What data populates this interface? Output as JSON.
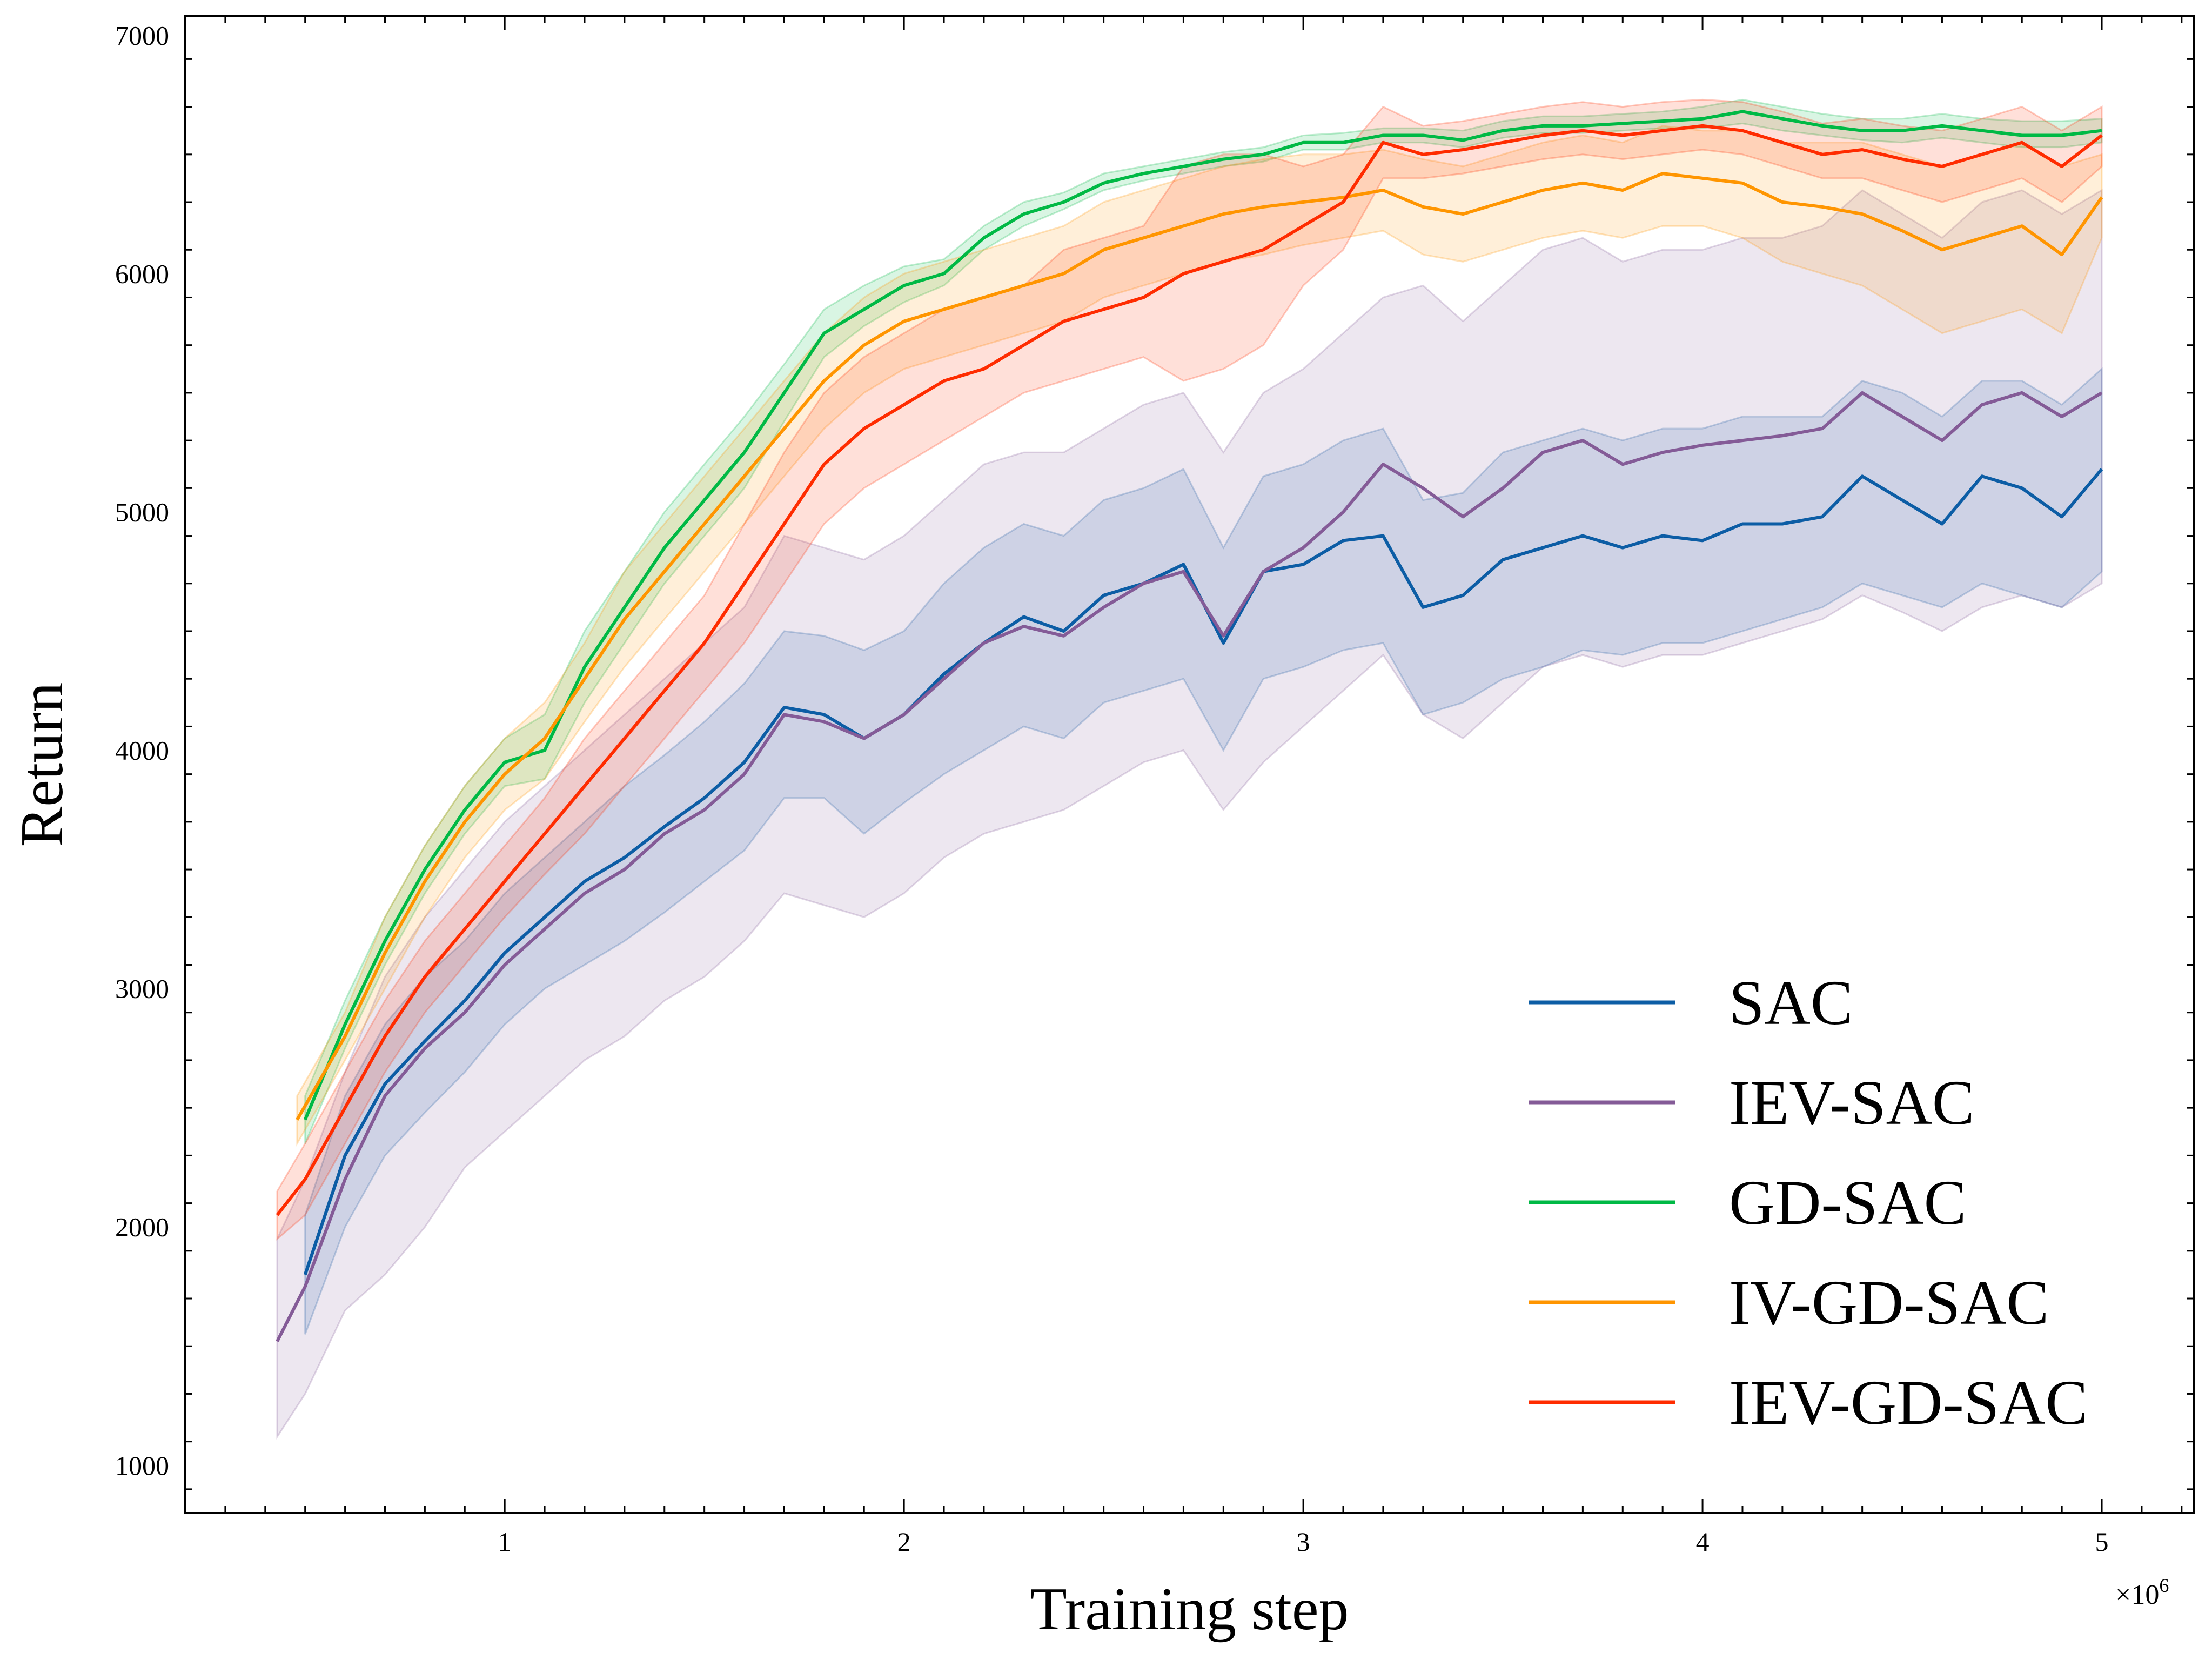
{
  "chart_data": {
    "type": "line",
    "title": "",
    "xlabel": "Training step",
    "ylabel": "Return",
    "x_scale_label": "×10",
    "x_scale_exponent": "6",
    "xlim": [
      0.2,
      5.23
    ],
    "ylim": [
      800,
      7080
    ],
    "xticks": [
      1,
      2,
      3,
      4,
      5
    ],
    "xtick_labels": [
      "1",
      "2",
      "3",
      "4",
      "5"
    ],
    "yticks": [
      1000,
      2000,
      3000,
      4000,
      5000,
      6000,
      7000
    ],
    "ytick_labels": [
      "1000",
      "2000",
      "3000",
      "4000",
      "5000",
      "6000",
      "7000"
    ],
    "legend_position": "lower-right",
    "series": [
      {
        "name": "SAC",
        "color": "#0C5DA5",
        "x": [
          0.5,
          0.6,
          0.7,
          0.8,
          0.9,
          1.0,
          1.1,
          1.2,
          1.3,
          1.4,
          1.5,
          1.6,
          1.7,
          1.8,
          1.9,
          2.0,
          2.1,
          2.2,
          2.3,
          2.4,
          2.5,
          2.6,
          2.7,
          2.8,
          2.9,
          3.0,
          3.1,
          3.2,
          3.3,
          3.4,
          3.5,
          3.6,
          3.7,
          3.8,
          3.9,
          4.0,
          4.1,
          4.2,
          4.3,
          4.4,
          4.5,
          4.6,
          4.7,
          4.8,
          4.9,
          5.0
        ],
        "values": [
          1800,
          2300,
          2600,
          2780,
          2950,
          3150,
          3300,
          3450,
          3550,
          3680,
          3800,
          3950,
          4180,
          4150,
          4050,
          4150,
          4320,
          4450,
          4560,
          4500,
          4650,
          4700,
          4780,
          4450,
          4750,
          4780,
          4880,
          4900,
          4600,
          4650,
          4800,
          4850,
          4900,
          4850,
          4900,
          4880,
          4950,
          4950,
          4980,
          5150,
          5050,
          4950,
          5150,
          5100,
          4980,
          5180
        ],
        "band_lower": [
          1550,
          2000,
          2300,
          2480,
          2650,
          2850,
          3000,
          3100,
          3200,
          3320,
          3450,
          3580,
          3800,
          3800,
          3650,
          3780,
          3900,
          4000,
          4100,
          4050,
          4200,
          4250,
          4300,
          4000,
          4300,
          4350,
          4420,
          4450,
          4150,
          4200,
          4300,
          4350,
          4420,
          4400,
          4450,
          4450,
          4500,
          4550,
          4600,
          4700,
          4650,
          4600,
          4700,
          4650,
          4600,
          4750
        ],
        "band_upper": [
          2050,
          2550,
          2850,
          3050,
          3200,
          3400,
          3550,
          3700,
          3850,
          3980,
          4120,
          4280,
          4500,
          4480,
          4420,
          4500,
          4700,
          4850,
          4950,
          4900,
          5050,
          5100,
          5180,
          4850,
          5150,
          5200,
          5300,
          5350,
          5050,
          5080,
          5250,
          5300,
          5350,
          5300,
          5350,
          5350,
          5400,
          5400,
          5400,
          5550,
          5500,
          5400,
          5550,
          5550,
          5450,
          5600
        ]
      },
      {
        "name": "IEV-SAC",
        "color": "#845B97",
        "x": [
          0.43,
          0.5,
          0.6,
          0.7,
          0.8,
          0.9,
          1.0,
          1.1,
          1.2,
          1.3,
          1.4,
          1.5,
          1.6,
          1.7,
          1.8,
          1.9,
          2.0,
          2.1,
          2.2,
          2.3,
          2.4,
          2.5,
          2.6,
          2.7,
          2.8,
          2.9,
          3.0,
          3.1,
          3.2,
          3.3,
          3.4,
          3.5,
          3.6,
          3.7,
          3.8,
          3.9,
          4.0,
          4.1,
          4.2,
          4.3,
          4.4,
          4.5,
          4.6,
          4.7,
          4.8,
          4.9,
          5.0
        ],
        "values": [
          1520,
          1750,
          2200,
          2550,
          2750,
          2900,
          3100,
          3250,
          3400,
          3500,
          3650,
          3750,
          3900,
          4150,
          4120,
          4050,
          4150,
          4300,
          4450,
          4520,
          4480,
          4600,
          4700,
          4750,
          4480,
          4750,
          4850,
          5000,
          5200,
          5100,
          4980,
          5100,
          5250,
          5300,
          5200,
          5250,
          5280,
          5300,
          5320,
          5350,
          5500,
          5400,
          5300,
          5450,
          5500,
          5400,
          5500
        ],
        "band_lower": [
          1120,
          1300,
          1650,
          1800,
          2000,
          2250,
          2400,
          2550,
          2700,
          2800,
          2950,
          3050,
          3200,
          3400,
          3350,
          3300,
          3400,
          3550,
          3650,
          3700,
          3750,
          3850,
          3950,
          4000,
          3750,
          3950,
          4100,
          4250,
          4400,
          4150,
          4050,
          4200,
          4350,
          4400,
          4350,
          4400,
          4400,
          4450,
          4500,
          4550,
          4650,
          4580,
          4500,
          4600,
          4650,
          4600,
          4700
        ],
        "band_upper": [
          1950,
          2200,
          2650,
          3050,
          3300,
          3500,
          3700,
          3850,
          4000,
          4150,
          4300,
          4450,
          4600,
          4900,
          4850,
          4800,
          4900,
          5050,
          5200,
          5250,
          5250,
          5350,
          5450,
          5500,
          5250,
          5500,
          5600,
          5750,
          5900,
          5950,
          5800,
          5950,
          6100,
          6150,
          6050,
          6100,
          6100,
          6150,
          6150,
          6200,
          6350,
          6250,
          6150,
          6300,
          6350,
          6250,
          6350
        ]
      },
      {
        "name": "GD-SAC",
        "color": "#00B945",
        "x": [
          0.5,
          0.6,
          0.7,
          0.8,
          0.9,
          1.0,
          1.1,
          1.2,
          1.3,
          1.4,
          1.5,
          1.6,
          1.7,
          1.8,
          1.9,
          2.0,
          2.1,
          2.2,
          2.3,
          2.4,
          2.5,
          2.6,
          2.7,
          2.8,
          2.9,
          3.0,
          3.1,
          3.2,
          3.3,
          3.4,
          3.5,
          3.6,
          3.7,
          3.8,
          3.9,
          4.0,
          4.1,
          4.2,
          4.3,
          4.4,
          4.5,
          4.6,
          4.7,
          4.8,
          4.9,
          5.0
        ],
        "values": [
          2450,
          2850,
          3200,
          3500,
          3750,
          3950,
          4000,
          4350,
          4600,
          4850,
          5050,
          5250,
          5500,
          5750,
          5850,
          5950,
          6000,
          6150,
          6250,
          6300,
          6380,
          6420,
          6450,
          6480,
          6500,
          6550,
          6550,
          6580,
          6580,
          6560,
          6600,
          6620,
          6620,
          6630,
          6640,
          6650,
          6680,
          6650,
          6620,
          6600,
          6600,
          6620,
          6600,
          6580,
          6580,
          6600
        ],
        "band_lower": [
          2350,
          2750,
          3100,
          3400,
          3650,
          3850,
          3880,
          4200,
          4450,
          4700,
          4900,
          5100,
          5380,
          5650,
          5780,
          5880,
          5950,
          6100,
          6200,
          6270,
          6350,
          6390,
          6420,
          6450,
          6470,
          6520,
          6520,
          6550,
          6550,
          6530,
          6570,
          6590,
          6590,
          6600,
          6610,
          6610,
          6630,
          6600,
          6580,
          6560,
          6550,
          6570,
          6550,
          6530,
          6530,
          6550
        ],
        "band_upper": [
          2550,
          2950,
          3300,
          3600,
          3850,
          4050,
          4150,
          4500,
          4750,
          5000,
          5200,
          5400,
          5620,
          5850,
          5950,
          6030,
          6060,
          6200,
          6300,
          6340,
          6420,
          6450,
          6480,
          6510,
          6530,
          6580,
          6590,
          6610,
          6610,
          6600,
          6640,
          6660,
          6660,
          6670,
          6680,
          6700,
          6730,
          6700,
          6670,
          6650,
          6650,
          6670,
          6650,
          6640,
          6640,
          6650
        ]
      },
      {
        "name": "IV-GD-SAC",
        "color": "#FF9500",
        "x": [
          0.48,
          0.6,
          0.7,
          0.8,
          0.9,
          1.0,
          1.1,
          1.2,
          1.3,
          1.4,
          1.5,
          1.6,
          1.7,
          1.8,
          1.9,
          2.0,
          2.1,
          2.2,
          2.3,
          2.4,
          2.5,
          2.6,
          2.7,
          2.8,
          2.9,
          3.0,
          3.1,
          3.2,
          3.3,
          3.4,
          3.5,
          3.6,
          3.7,
          3.8,
          3.9,
          4.0,
          4.1,
          4.2,
          4.3,
          4.4,
          4.5,
          4.6,
          4.7,
          4.8,
          4.9,
          5.0
        ],
        "values": [
          2450,
          2800,
          3150,
          3450,
          3700,
          3900,
          4050,
          4300,
          4550,
          4750,
          4950,
          5150,
          5350,
          5550,
          5700,
          5800,
          5850,
          5900,
          5950,
          6000,
          6100,
          6150,
          6200,
          6250,
          6280,
          6300,
          6320,
          6350,
          6280,
          6250,
          6300,
          6350,
          6380,
          6350,
          6420,
          6400,
          6380,
          6300,
          6280,
          6250,
          6180,
          6100,
          6150,
          6200,
          6080,
          6320
        ],
        "band_lower": [
          2350,
          2700,
          3000,
          3300,
          3550,
          3750,
          3880,
          4120,
          4350,
          4550,
          4750,
          4950,
          5150,
          5350,
          5500,
          5600,
          5650,
          5700,
          5750,
          5800,
          5900,
          5950,
          6000,
          6050,
          6080,
          6120,
          6150,
          6180,
          6080,
          6050,
          6100,
          6150,
          6180,
          6150,
          6200,
          6200,
          6150,
          6050,
          6000,
          5950,
          5850,
          5750,
          5800,
          5850,
          5750,
          6150
        ],
        "band_upper": [
          2550,
          2900,
          3300,
          3600,
          3850,
          4050,
          4200,
          4450,
          4750,
          4950,
          5150,
          5350,
          5550,
          5750,
          5900,
          6000,
          6050,
          6100,
          6150,
          6200,
          6300,
          6350,
          6400,
          6450,
          6480,
          6500,
          6500,
          6520,
          6480,
          6450,
          6500,
          6550,
          6580,
          6550,
          6620,
          6600,
          6600,
          6550,
          6550,
          6550,
          6500,
          6450,
          6500,
          6550,
          6450,
          6500
        ]
      },
      {
        "name": "IEV-GD-SAC",
        "color": "#FF2C00",
        "x": [
          0.43,
          0.5,
          0.6,
          0.7,
          0.8,
          0.9,
          1.0,
          1.1,
          1.2,
          1.3,
          1.4,
          1.5,
          1.6,
          1.7,
          1.8,
          1.9,
          2.0,
          2.1,
          2.2,
          2.3,
          2.4,
          2.5,
          2.6,
          2.7,
          2.8,
          2.9,
          3.0,
          3.1,
          3.2,
          3.3,
          3.4,
          3.5,
          3.6,
          3.7,
          3.8,
          3.9,
          4.0,
          4.1,
          4.2,
          4.3,
          4.4,
          4.5,
          4.6,
          4.7,
          4.8,
          4.9,
          5.0
        ],
        "values": [
          2050,
          2200,
          2500,
          2800,
          3050,
          3250,
          3450,
          3650,
          3850,
          4050,
          4250,
          4450,
          4700,
          4950,
          5200,
          5350,
          5450,
          5550,
          5600,
          5700,
          5800,
          5850,
          5900,
          6000,
          6050,
          6100,
          6200,
          6300,
          6550,
          6500,
          6520,
          6550,
          6580,
          6600,
          6580,
          6600,
          6620,
          6600,
          6550,
          6500,
          6520,
          6480,
          6450,
          6500,
          6550,
          6450,
          6580
        ],
        "band_lower": [
          1950,
          2050,
          2350,
          2650,
          2900,
          3100,
          3300,
          3480,
          3650,
          3850,
          4050,
          4250,
          4450,
          4700,
          4950,
          5100,
          5200,
          5300,
          5400,
          5500,
          5550,
          5600,
          5650,
          5550,
          5600,
          5700,
          5950,
          6100,
          6400,
          6400,
          6420,
          6450,
          6480,
          6500,
          6480,
          6500,
          6520,
          6500,
          6450,
          6400,
          6400,
          6350,
          6300,
          6350,
          6400,
          6300,
          6450
        ],
        "band_upper": [
          2150,
          2350,
          2650,
          2950,
          3200,
          3400,
          3600,
          3800,
          4050,
          4250,
          4450,
          4650,
          4950,
          5250,
          5500,
          5650,
          5750,
          5850,
          5900,
          5950,
          6100,
          6150,
          6200,
          6450,
          6500,
          6500,
          6450,
          6500,
          6700,
          6620,
          6640,
          6670,
          6700,
          6720,
          6700,
          6720,
          6730,
          6720,
          6680,
          6630,
          6650,
          6620,
          6600,
          6650,
          6700,
          6600,
          6700
        ]
      }
    ]
  }
}
